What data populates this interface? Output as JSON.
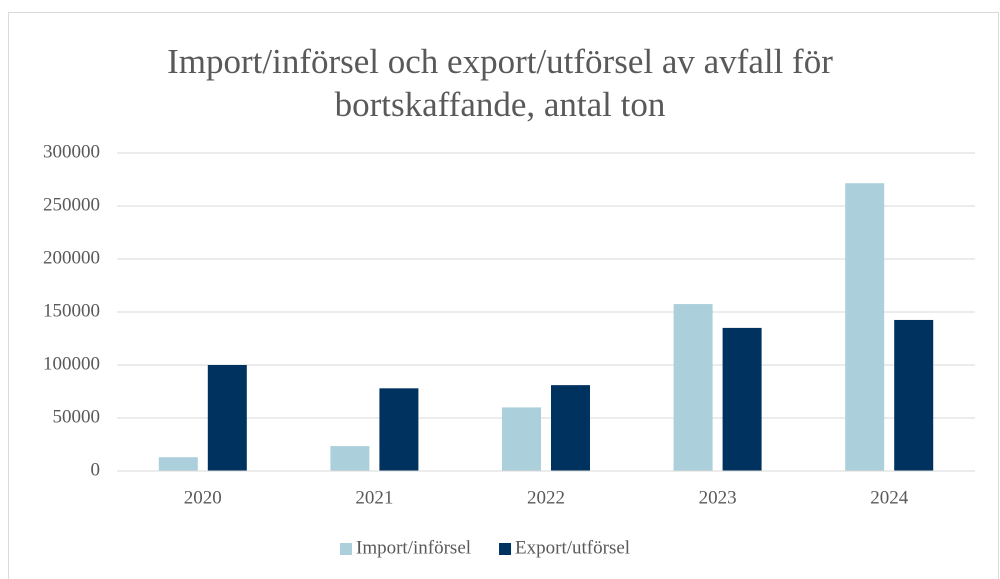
{
  "chart_data": {
    "type": "bar",
    "title": "Import/införsel och export/utförsel av avfall för bortskaffande, antal ton",
    "categories": [
      "2020",
      "2021",
      "2022",
      "2023",
      "2024"
    ],
    "series": [
      {
        "name": "Import/införsel",
        "color": "#abd0db",
        "values": [
          13000,
          23500,
          60000,
          157500,
          271500
        ]
      },
      {
        "name": "Export/utförsel",
        "color": "#00325f",
        "values": [
          100000,
          78000,
          81000,
          135000,
          142500
        ]
      }
    ],
    "ylim": [
      0,
      300000
    ],
    "yticks": [
      0,
      50000,
      100000,
      150000,
      200000,
      250000,
      300000
    ],
    "grid": true,
    "legend": "bottom"
  }
}
